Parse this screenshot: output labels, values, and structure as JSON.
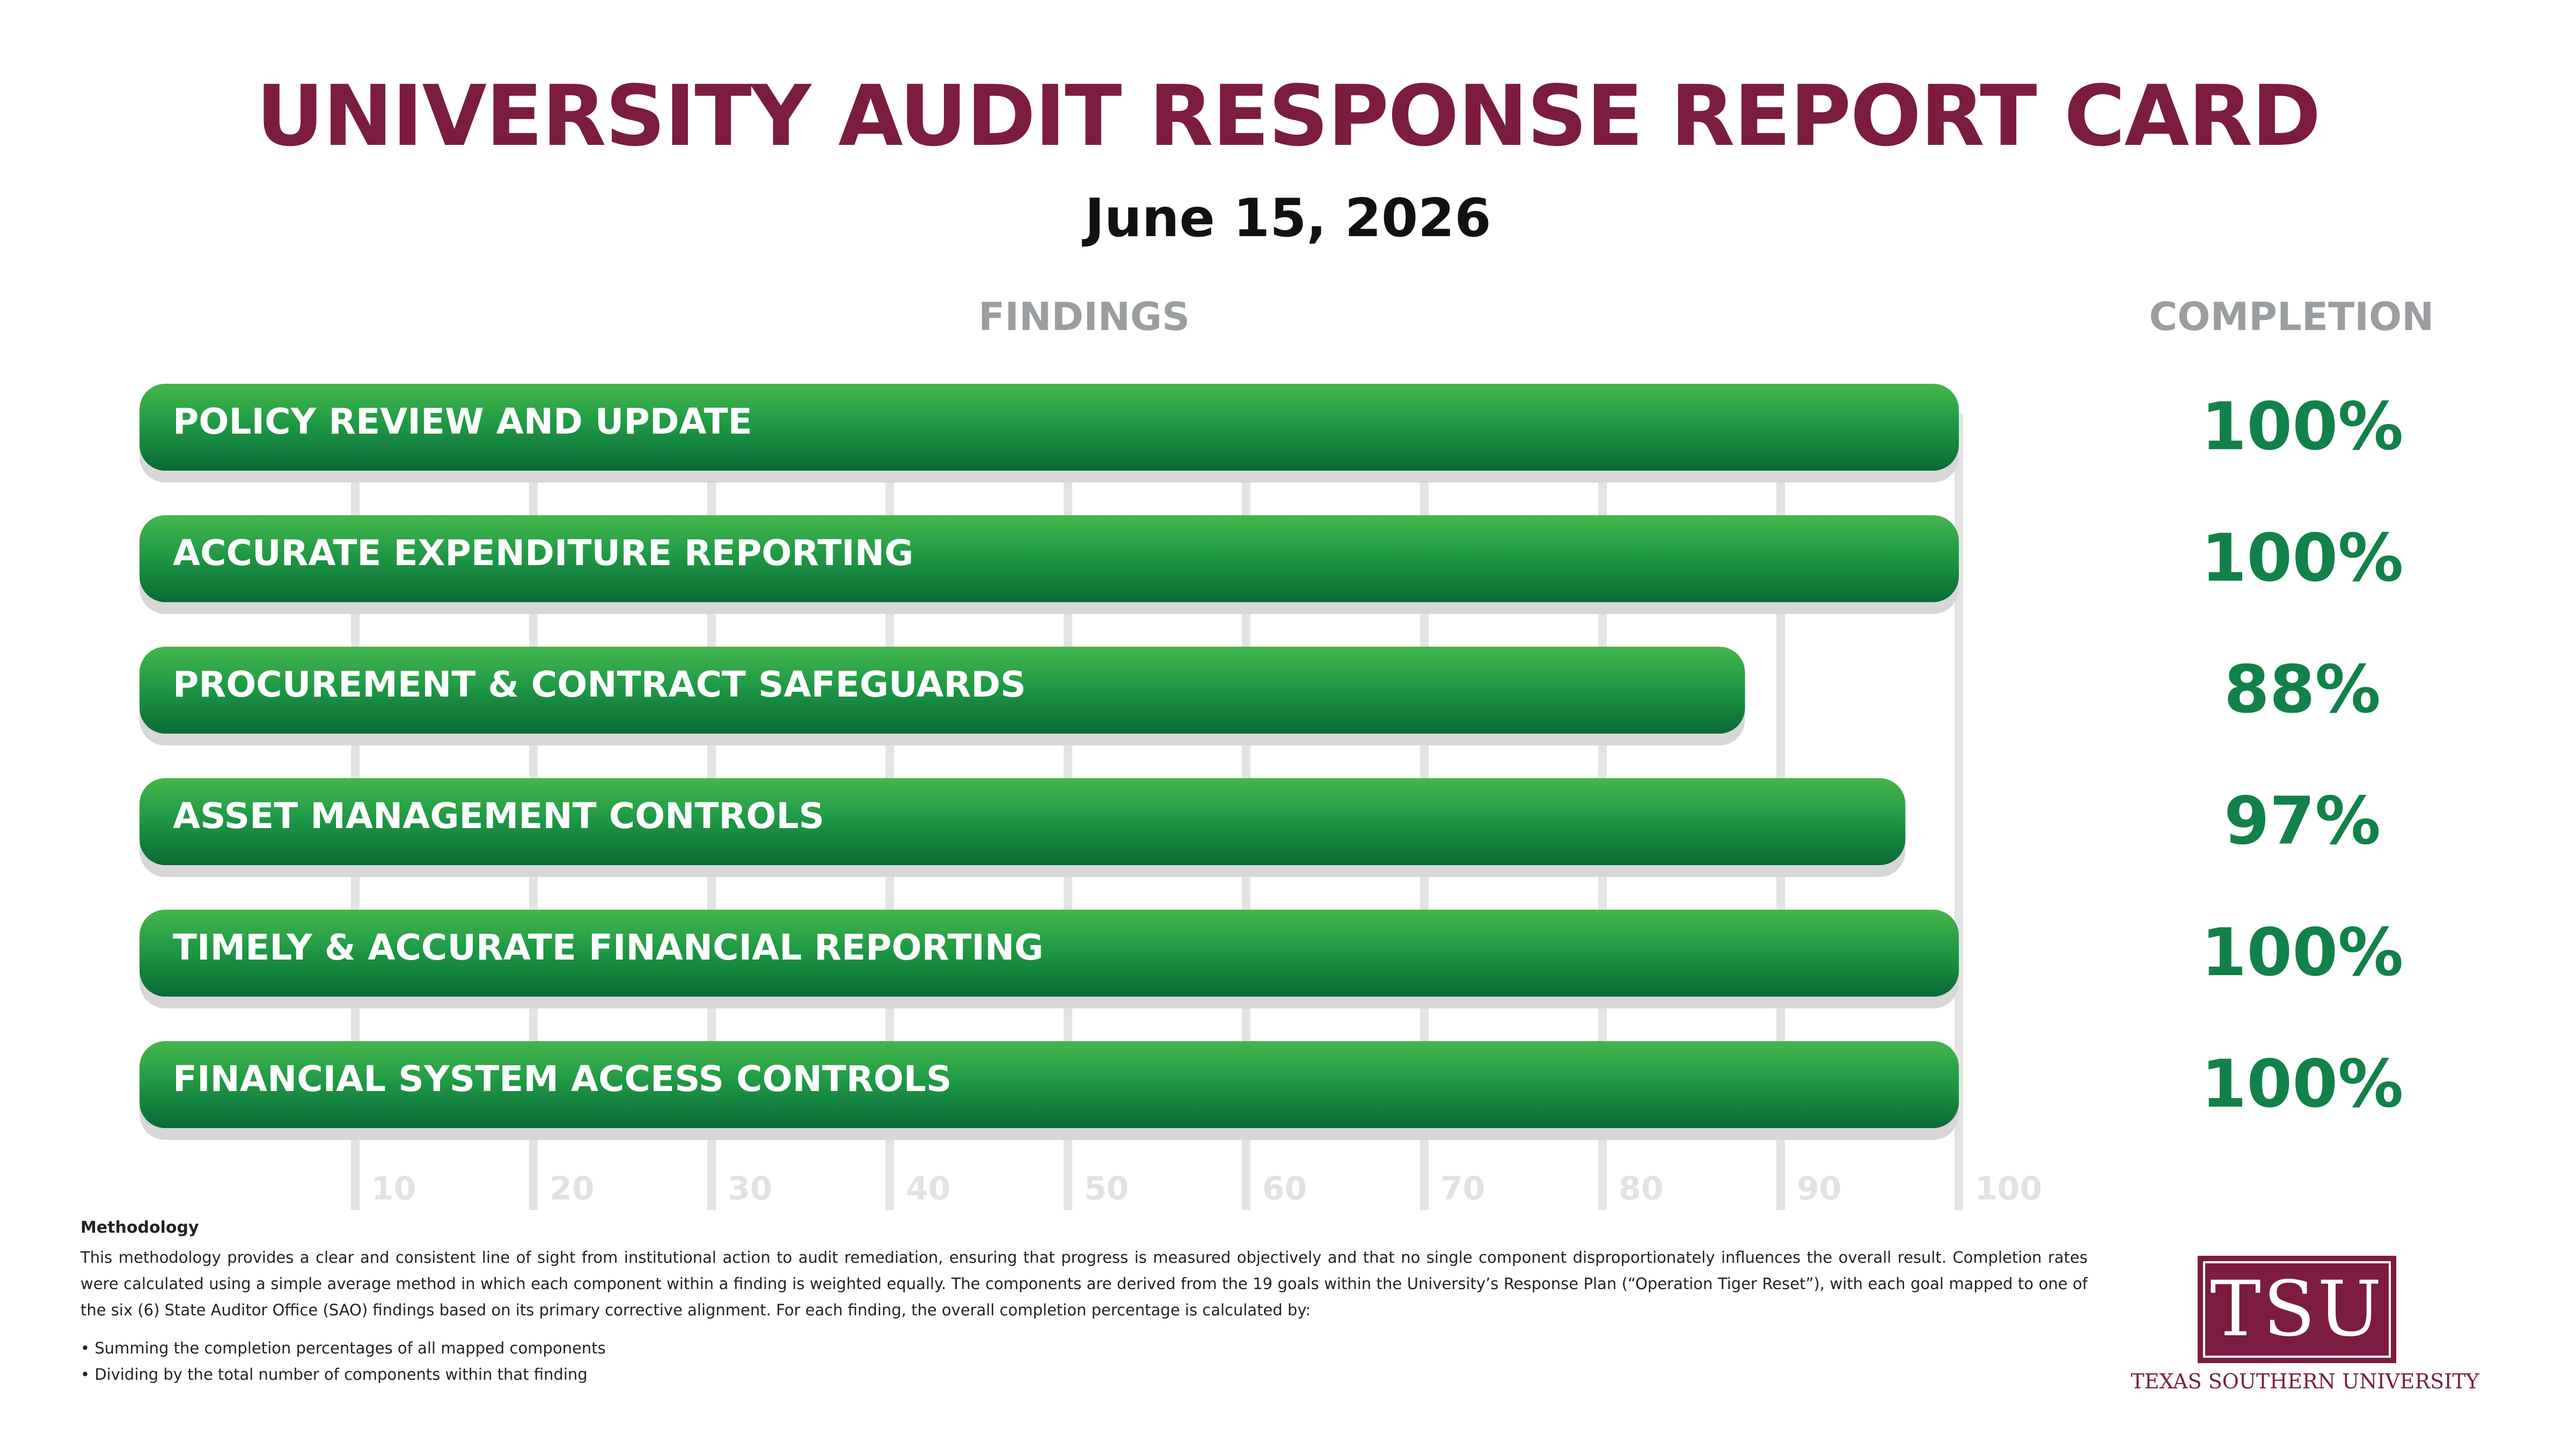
{
  "header": {
    "title": "UNIVERSITY AUDIT RESPONSE REPORT CARD",
    "date": "June 15, 2026"
  },
  "columns": {
    "findings": "FINDINGS",
    "completion": "COMPLETION"
  },
  "chart_data": {
    "type": "bar",
    "orientation": "horizontal",
    "categories": [
      "POLICY REVIEW AND UPDATE",
      "ACCURATE EXPENDITURE REPORTING",
      "PROCUREMENT & CONTRACT SAFEGUARDS",
      "ASSET MANAGEMENT CONTROLS",
      "TIMELY & ACCURATE FINANCIAL REPORTING",
      "FINANCIAL SYSTEM ACCESS CONTROLS"
    ],
    "values": [
      100,
      100,
      88,
      97,
      100,
      100
    ],
    "value_labels": [
      "100%",
      "100%",
      "88%",
      "97%",
      "100%",
      "100%"
    ],
    "x_ticks": [
      10,
      20,
      30,
      40,
      50,
      60,
      70,
      80,
      90,
      100
    ],
    "xlim": [
      0,
      100
    ],
    "grid": true,
    "bar_color": "#1a9a46",
    "value_color": "#12814a"
  },
  "methodology": {
    "title": "Methodology",
    "text": "This methodology provides a clear and consistent line of sight from institutional action to audit remediation, ensuring that progress is measured objectively and that no single component disproportionately influences the overall result. Completion rates were calculated using a simple average method in which each component within a finding is weighted equally. The components are derived from the 19 goals within the University’s Response Plan (“Operation Tiger Reset”), with each goal mapped to one of the six (6) State Auditor Office (SAO) findings based on its primary corrective alignment. For each finding, the overall completion percentage is calculated by:",
    "bullets": [
      "• Summing the completion percentages of all mapped components",
      "• Dividing by the total number of components within that finding"
    ]
  },
  "logo": {
    "letters": "TSU",
    "name": "TEXAS SOUTHERN UNIVERSITY"
  }
}
